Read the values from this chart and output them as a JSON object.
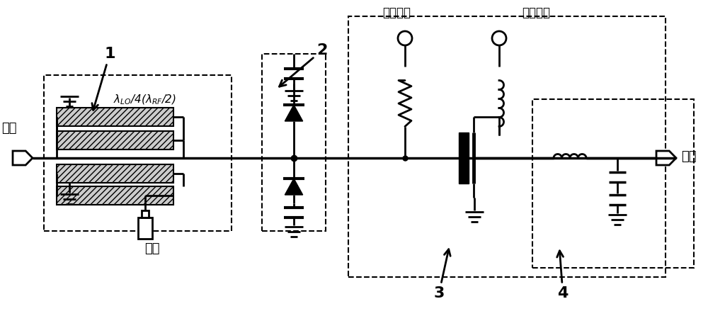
{
  "bg_color": "#ffffff",
  "line_color": "#000000",
  "lw": 2.0,
  "lw_thick": 3.5,
  "labels": {
    "rf": "射频",
    "lo": "本振",
    "if_out": "中频",
    "lambda_label": "λ",
    "lambda_lo": "LO",
    "lambda_rf": "RF",
    "gate_bias": "栅极偏压",
    "drain_bias": "漏极偏压",
    "label1": "1",
    "label2": "2",
    "label3": "3",
    "label4": "4"
  },
  "figsize": [
    10.0,
    4.46
  ],
  "dpi": 100,
  "xlim": [
    0,
    10
  ],
  "ylim": [
    0,
    4.46
  ]
}
